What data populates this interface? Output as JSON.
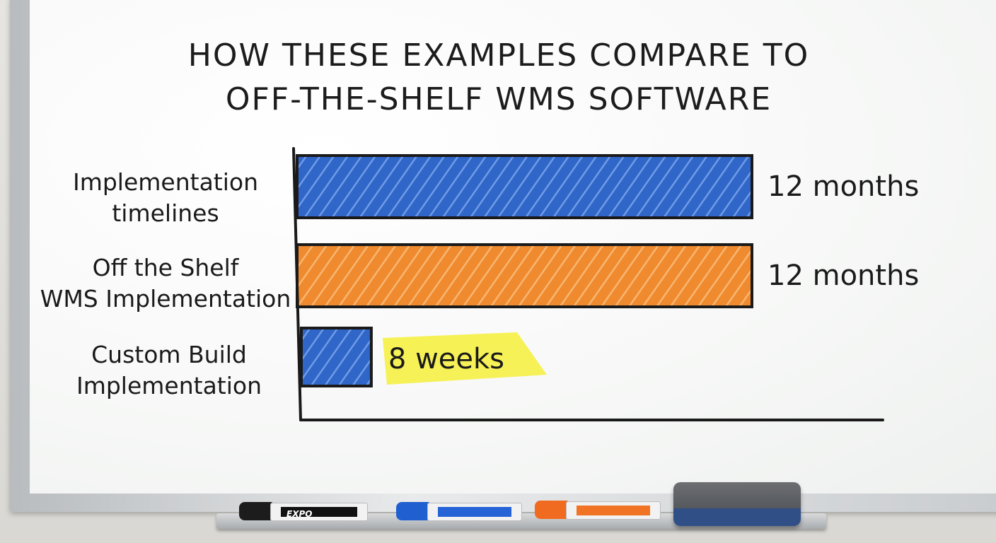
{
  "chart_data": {
    "type": "bar",
    "orientation": "horizontal",
    "title_lines": [
      "HOW THESE EXAMPLES COMPARE TO",
      "OFF-THE-SHELF WMS SOFTWARE"
    ],
    "categories": [
      [
        "Implementation",
        "timelines"
      ],
      [
        "Off the Shelf",
        "WMS Implementation"
      ],
      [
        "Custom Build",
        "Implementation"
      ]
    ],
    "values_weeks": [
      52,
      52,
      8
    ],
    "value_labels": [
      "12 months",
      "12 months",
      "8 weeks"
    ],
    "bar_colors": [
      "#2f66c8",
      "#f08a2e",
      "#2f66c8"
    ],
    "highlight": {
      "index": 2,
      "color": "#f6f03a"
    },
    "grid": false,
    "legend": "none"
  },
  "tray": {
    "markers": [
      {
        "brand": "EXPO",
        "cap_color": "#1c1c1c",
        "band_color": "#111111"
      },
      {
        "brand": "",
        "cap_color": "#1f5fd0",
        "band_color": "#2563d6"
      },
      {
        "brand": "",
        "cap_color": "#f06a1f",
        "band_color": "#f07424"
      }
    ],
    "eraser": true
  }
}
